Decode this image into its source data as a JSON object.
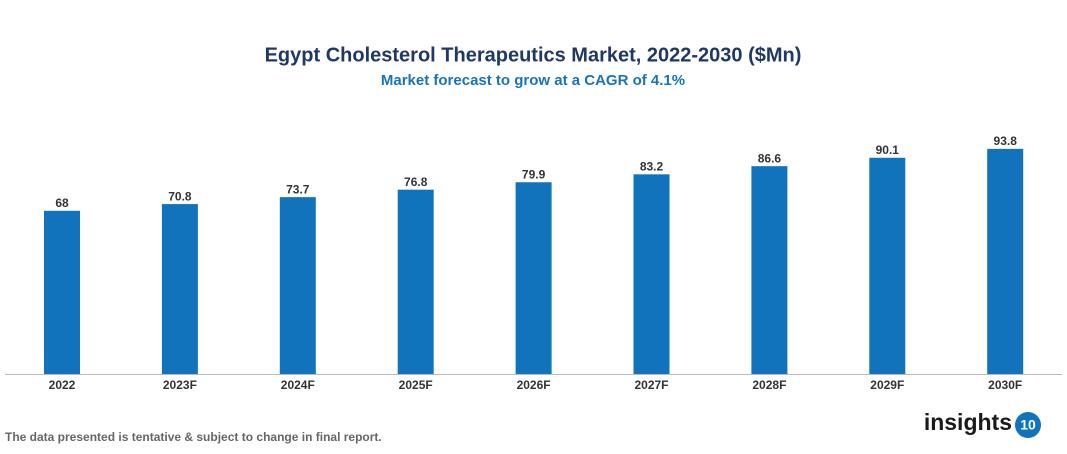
{
  "chart_data": {
    "type": "bar",
    "title": "Egypt Cholesterol Therapeutics Market, 2022-2030 ($Mn)",
    "subtitle": "Market forecast to grow at a CAGR of 4.1%",
    "categories": [
      "2022",
      "2023F",
      "2024F",
      "2025F",
      "2026F",
      "2027F",
      "2028F",
      "2029F",
      "2030F"
    ],
    "values": [
      68,
      70.8,
      73.7,
      76.8,
      79.9,
      83.2,
      86.6,
      90.1,
      93.8
    ],
    "color": "#1273bd",
    "footnote": "The data presented is tentative & subject to change in final report.",
    "logo": {
      "text": "insights",
      "badge": "10"
    }
  }
}
